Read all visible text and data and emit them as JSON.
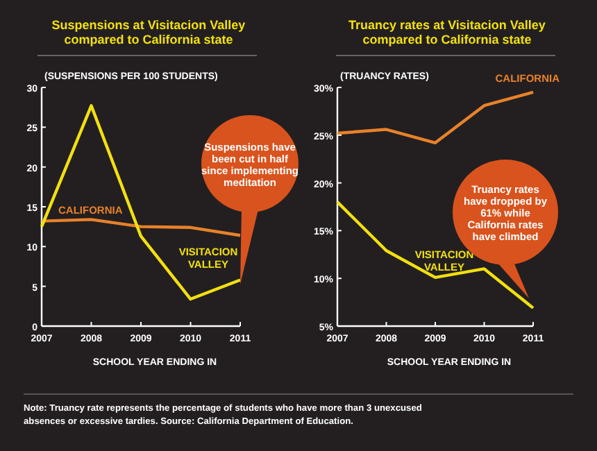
{
  "chart_data": [
    {
      "type": "line",
      "title": "Suspensions at Visitacion Valley compared to California state",
      "ylabel": "(SUSPENSIONS PER 100 STUDENTS)",
      "xlabel": "SCHOOL YEAR ENDING IN",
      "x": [
        2007,
        2008,
        2009,
        2010,
        2011
      ],
      "xlim": [
        2007,
        2011
      ],
      "xticks": [
        2007,
        2008,
        2009,
        2010,
        2011
      ],
      "ylim": [
        0,
        30
      ],
      "yticks": [
        0,
        5,
        10,
        15,
        20,
        25,
        30
      ],
      "series": [
        {
          "name": "CALIFORNIA",
          "color": "#e8822a",
          "values": [
            13.2,
            13.4,
            12.5,
            12.4,
            11.4
          ]
        },
        {
          "name": "VISITACION VALLEY",
          "color": "#f2e010",
          "values": [
            12.5,
            27.7,
            11.3,
            3.4,
            5.8
          ]
        }
      ],
      "annotations": [
        "Suspensions have been cut in half since implementing meditation"
      ],
      "grid": false,
      "marker": "none"
    },
    {
      "type": "line",
      "title": "Truancy rates at Visitacion Valley compared to California state",
      "ylabel": "(TRUANCY RATES)",
      "xlabel": "SCHOOL YEAR ENDING IN",
      "x": [
        2007,
        2008,
        2009,
        2010,
        2011
      ],
      "xlim": [
        2007,
        2011
      ],
      "xticks": [
        2007,
        2008,
        2009,
        2010,
        2011
      ],
      "ylim": [
        5,
        30
      ],
      "yticks": [
        {
          "value": 5,
          "label": "5%"
        },
        {
          "value": 10,
          "label": "10%"
        },
        {
          "value": 15,
          "label": "15%"
        },
        {
          "value": 20,
          "label": "20%"
        },
        {
          "value": 25,
          "label": "25%"
        },
        {
          "value": 30,
          "label": "30%"
        }
      ],
      "series": [
        {
          "name": "CALIFORNIA",
          "color": "#e8822a",
          "values": [
            25.2,
            25.6,
            24.2,
            28.1,
            29.5
          ]
        },
        {
          "name": "VISITACION VALLEY",
          "color": "#f2e010",
          "values": [
            18,
            12.9,
            10.1,
            11,
            6.9
          ]
        }
      ],
      "annotations": [
        "Truancy rates have dropped by 61% while California rates have climbed",
        "Note: Truancy rate represents the percentage of students who have more than 3 unexcused absences or excessive tardies. Source: California Department of Education."
      ],
      "grid": false,
      "marker": "none"
    }
  ]
}
